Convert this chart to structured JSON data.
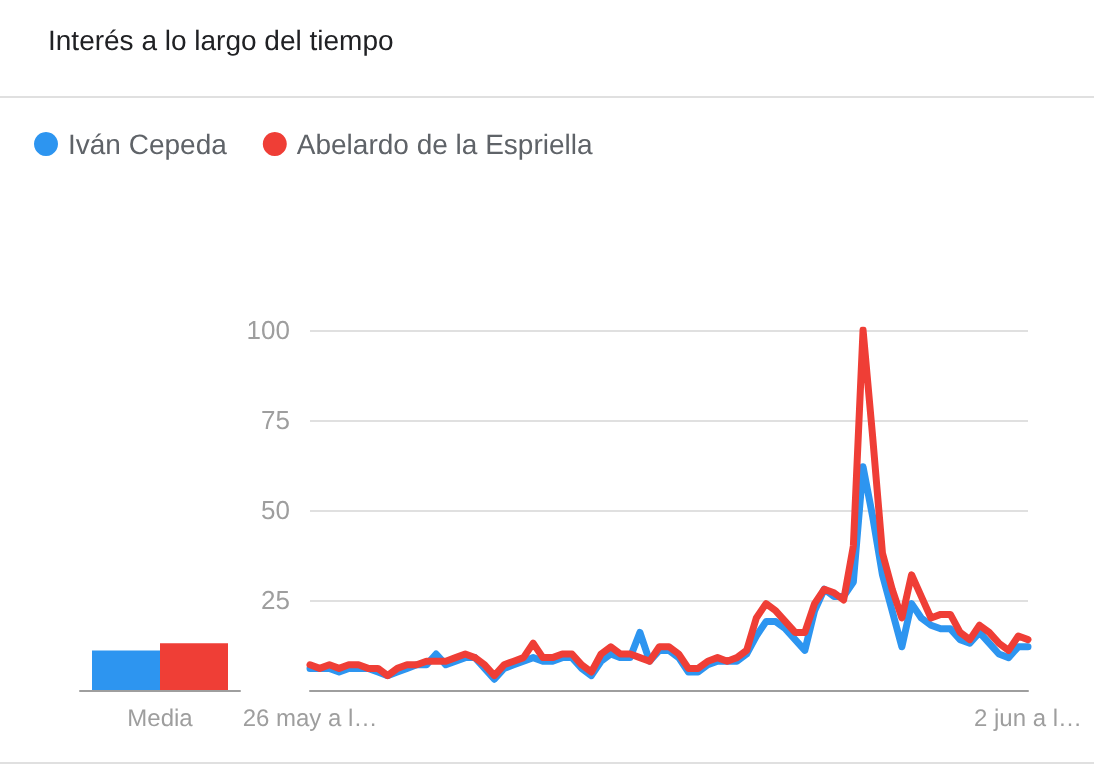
{
  "chart_data": [
    {
      "type": "bar",
      "title": "Interés a lo largo del tiempo",
      "categories": [
        "Media"
      ],
      "series": [
        {
          "color": "#2d95f0",
          "values": [
            11
          ]
        },
        {
          "color": "#ef3e36",
          "values": [
            13
          ]
        }
      ],
      "ylim": [
        0,
        100
      ],
      "tick_labels": "x",
      "grid": false,
      "legend": false
    },
    {
      "type": "line",
      "categories": [
        "26 may a l…",
        null,
        null,
        null,
        null,
        null,
        null,
        null,
        null,
        null,
        null,
        null,
        null,
        null,
        null,
        null,
        null,
        null,
        null,
        null,
        null,
        null,
        null,
        null,
        null,
        null,
        null,
        null,
        null,
        null,
        null,
        null,
        null,
        null,
        null,
        null,
        null,
        null,
        null,
        null,
        null,
        null,
        null,
        null,
        null,
        null,
        null,
        null,
        null,
        null,
        null,
        null,
        null,
        null,
        null,
        null,
        null,
        null,
        null,
        null,
        null,
        null,
        null,
        null,
        null,
        null,
        null,
        null,
        null,
        null,
        null,
        null,
        null,
        null,
        "2 jun a l…"
      ],
      "series": [
        {
          "name": "Iván Cepeda",
          "color": "#2d95f0",
          "values": [
            6,
            6,
            6,
            5,
            6,
            6,
            6,
            5,
            4,
            5,
            6,
            7,
            7,
            10,
            7,
            8,
            9,
            9,
            6,
            3,
            6,
            7,
            8,
            9,
            8,
            8,
            9,
            9,
            6,
            4,
            8,
            10,
            9,
            9,
            16,
            8,
            11,
            11,
            9,
            5,
            5,
            7,
            8,
            8,
            8,
            10,
            15,
            19,
            19,
            17,
            14,
            11,
            22,
            28,
            26,
            26,
            30,
            62,
            48,
            32,
            22,
            12,
            24,
            20,
            18,
            17,
            17,
            14,
            13,
            16,
            13,
            10,
            9,
            12,
            12
          ]
        },
        {
          "name": "Abelardo de la Espriella",
          "color": "#ef3e36",
          "values": [
            7,
            6,
            7,
            6,
            7,
            7,
            6,
            6,
            4,
            6,
            7,
            7,
            8,
            8,
            8,
            9,
            10,
            9,
            7,
            4,
            7,
            8,
            9,
            13,
            9,
            9,
            10,
            10,
            7,
            5,
            10,
            12,
            10,
            10,
            9,
            8,
            12,
            12,
            10,
            6,
            6,
            8,
            9,
            8,
            9,
            11,
            20,
            24,
            22,
            19,
            16,
            16,
            24,
            28,
            27,
            25,
            40,
            100,
            70,
            38,
            28,
            20,
            32,
            26,
            20,
            21,
            21,
            16,
            14,
            18,
            16,
            13,
            11,
            15,
            14
          ]
        }
      ],
      "ylim": [
        0,
        100
      ],
      "yticks": [
        25,
        50,
        75,
        100
      ],
      "grid": "y",
      "legend": "top left",
      "marker": "none",
      "line_style": "solid"
    }
  ]
}
